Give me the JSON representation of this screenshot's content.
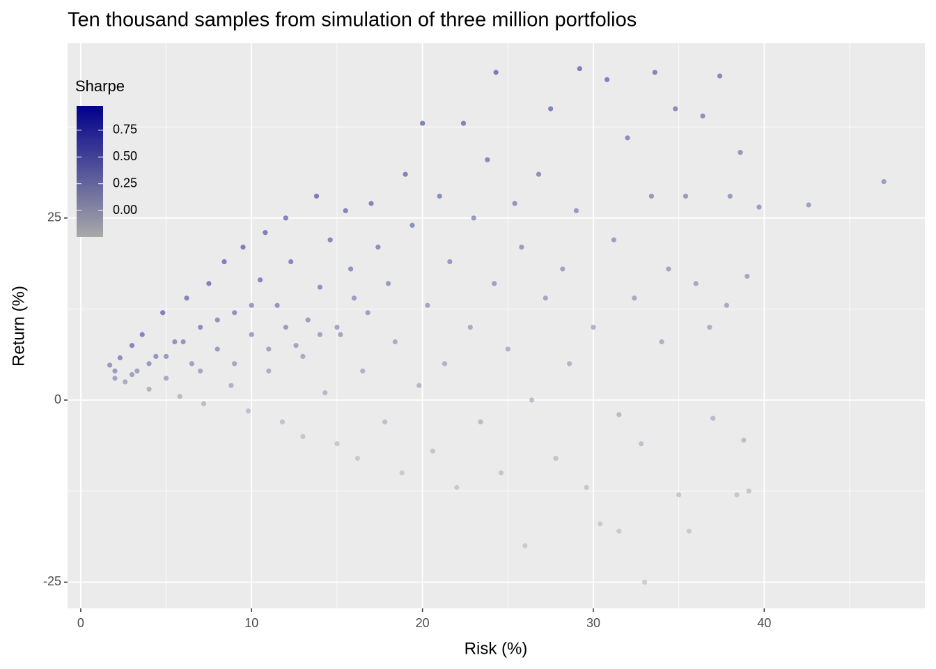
{
  "chart_data": {
    "type": "scatter",
    "title": "Ten thousand samples from  simulation of three million portfolios",
    "xlabel": "Risk (%)",
    "ylabel": "Return (%)",
    "legend_title": "Sharpe",
    "xlim": [
      -0.77,
      49.4
    ],
    "ylim": [
      -28.6,
      49.0
    ],
    "xticks": [
      0,
      10,
      20,
      30,
      40
    ],
    "yticks": [
      -25,
      0,
      25
    ],
    "xminor": [
      5,
      15,
      25,
      35,
      45
    ],
    "yminor": [
      -12.5,
      12.5,
      37.5
    ],
    "grid": true,
    "low_color": "#a9a9a9",
    "high_color": "#00008b",
    "colorlim": [
      -0.247,
      0.977
    ],
    "colorticks": [
      {
        "value": 0,
        "label": "0.00"
      },
      {
        "value": 0.25,
        "label": "0.25"
      },
      {
        "value": 0.5,
        "label": "0.50"
      },
      {
        "value": 0.75,
        "label": "0.75"
      }
    ],
    "legend_position": "top-left",
    "x": [
      1.7,
      2.0,
      2.3,
      2.6,
      3.0,
      3.3,
      3.6,
      4.0,
      4.4,
      4.8,
      5.0,
      5.5,
      5.8,
      6.2,
      6.5,
      7.0,
      7.2,
      7.5,
      8.0,
      8.4,
      8.8,
      9.0,
      9.5,
      9.8,
      10.0,
      10.5,
      10.8,
      11.0,
      11.5,
      11.8,
      12.0,
      12.3,
      12.6,
      13.0,
      13.3,
      13.8,
      14.0,
      14.3,
      14.6,
      15.0,
      15.2,
      15.5,
      15.8,
      16.2,
      16.5,
      16.8,
      17.0,
      17.4,
      17.8,
      18.0,
      18.4,
      18.8,
      19.0,
      19.4,
      19.8,
      20.0,
      20.3,
      20.6,
      21.0,
      21.3,
      21.6,
      22.0,
      22.4,
      22.8,
      23.0,
      23.4,
      23.8,
      24.2,
      24.3,
      24.6,
      25.0,
      25.4,
      25.8,
      26.0,
      26.4,
      26.8,
      27.2,
      27.5,
      27.8,
      28.2,
      28.6,
      29.0,
      29.2,
      29.6,
      30.0,
      30.4,
      30.8,
      31.2,
      31.5,
      31.5,
      32.0,
      32.4,
      32.8,
      33.0,
      33.4,
      33.6,
      34.0,
      34.4,
      34.8,
      35.0,
      35.4,
      35.6,
      36.0,
      36.4,
      36.8,
      37.0,
      37.4,
      37.8,
      38.0,
      38.4,
      38.6,
      38.8,
      39.0,
      39.1,
      39.7,
      42.6,
      47.0,
      6,
      8,
      10,
      12,
      14,
      9,
      11,
      13,
      7,
      5,
      16,
      15,
      3,
      2,
      4
    ],
    "y": [
      4.8,
      3.0,
      5.8,
      2.5,
      7.5,
      4.0,
      9.0,
      1.5,
      6.0,
      12.0,
      3.0,
      8.0,
      0.5,
      14.0,
      5.0,
      10.0,
      -0.5,
      16.0,
      7.0,
      19.0,
      2.0,
      12.0,
      21.0,
      -1.5,
      9.0,
      16.5,
      23.0,
      4.0,
      13.0,
      -3.0,
      25.0,
      19.0,
      7.5,
      -5.0,
      11.0,
      28.0,
      15.5,
      1.0,
      22.0,
      -6.0,
      9.0,
      26.0,
      18.0,
      -8.0,
      4.0,
      12.0,
      27.0,
      21.0,
      -3.0,
      16.0,
      8.0,
      -10.0,
      31.0,
      24.0,
      2.0,
      38.0,
      13.0,
      -7.0,
      28.0,
      5.0,
      19.0,
      -12.0,
      38.0,
      10.0,
      25.0,
      -3.0,
      33.0,
      16.0,
      45.0,
      -10.0,
      7.0,
      27.0,
      21.0,
      -20.0,
      0.0,
      31.0,
      14.0,
      40.0,
      -8.0,
      18.0,
      5.0,
      26.0,
      45.5,
      -12.0,
      10.0,
      -17.0,
      44.0,
      22.0,
      -2.0,
      -18.0,
      36.0,
      14.0,
      -6.0,
      -25.0,
      28.0,
      45.0,
      8.0,
      18.0,
      40.0,
      -13.0,
      28.0,
      -18.0,
      16.0,
      39.0,
      10.0,
      -2.5,
      44.5,
      13.0,
      28.0,
      -13.0,
      34.0,
      -5.5,
      17.0,
      -12.5,
      26.5,
      26.8,
      30.0,
      8,
      11,
      13,
      10,
      9,
      5,
      7,
      6,
      4,
      6,
      14,
      10,
      3.5,
      4,
      5
    ],
    "sharpe": [
      0.45,
      0.3,
      0.6,
      0.2,
      0.7,
      0.35,
      0.75,
      0.1,
      0.5,
      0.8,
      0.25,
      0.55,
      0.0,
      0.78,
      0.35,
      0.6,
      -0.05,
      0.8,
      0.4,
      0.82,
      0.1,
      0.55,
      0.85,
      -0.1,
      0.4,
      0.7,
      0.85,
      0.15,
      0.5,
      -0.15,
      0.85,
      0.7,
      0.3,
      -0.2,
      0.4,
      0.85,
      0.55,
      0.02,
      0.7,
      -0.2,
      0.3,
      0.75,
      0.55,
      -0.25,
      0.1,
      0.35,
      0.75,
      0.6,
      -0.1,
      0.45,
      0.2,
      -0.25,
      0.8,
      0.6,
      0.03,
      0.85,
      0.3,
      -0.15,
      0.65,
      0.1,
      0.45,
      -0.25,
      0.8,
      0.2,
      0.55,
      -0.05,
      0.7,
      0.35,
      0.9,
      -0.2,
      0.12,
      0.55,
      0.42,
      -0.35,
      -0.02,
      0.6,
      0.25,
      0.78,
      -0.15,
      0.32,
      0.06,
      0.48,
      0.85,
      -0.2,
      0.15,
      -0.28,
      0.8,
      0.38,
      -0.04,
      -0.3,
      0.62,
      0.22,
      -0.1,
      -0.38,
      0.47,
      0.75,
      0.12,
      0.28,
      0.65,
      -0.2,
      0.45,
      -0.28,
      0.25,
      0.62,
      0.15,
      -0.04,
      0.7,
      0.2,
      0.42,
      -0.2,
      0.52,
      -0.09,
      0.25,
      -0.18,
      0.4,
      0.37,
      0.38,
      0.5,
      0.55,
      0.5,
      0.4,
      0.3,
      0.25,
      0.3,
      0.2,
      0.25,
      0.45,
      0.4,
      0.3,
      0.35,
      0.4,
      0.45
    ]
  }
}
